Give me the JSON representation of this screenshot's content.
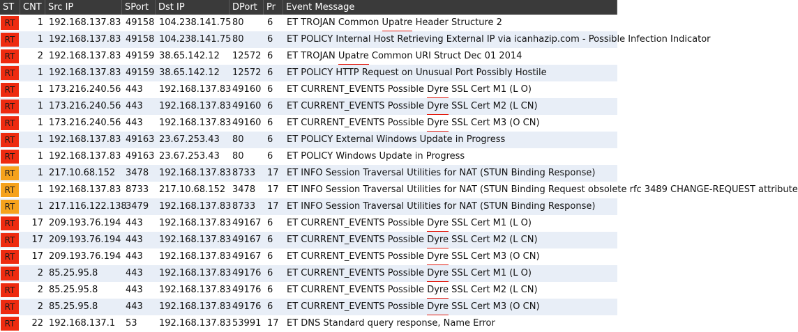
{
  "columns": {
    "st": "ST",
    "cnt": "CNT",
    "src": "Src IP",
    "sport": "SPort",
    "dst": "Dst IP",
    "dport": "DPort",
    "pr": "Pr",
    "msg": "Event Message"
  },
  "severity_colors": {
    "high": "#ee2b10",
    "med": "#f6a21c",
    "underline": "#e31a0e"
  },
  "rows": [
    {
      "st": "RT",
      "sev": "high",
      "cnt": "1",
      "src": "192.168.137.83",
      "sport": "49158",
      "dst": "104.238.141.75",
      "dport": "80",
      "pr": "6",
      "pre": "ET TROJAN Common ",
      "kw": "Upatre",
      "post": " Header Structure 2",
      "mark": true
    },
    {
      "st": "RT",
      "sev": "high",
      "cnt": "1",
      "src": "192.168.137.83",
      "sport": "49158",
      "dst": "104.238.141.75",
      "dport": "80",
      "pr": "6",
      "pre": "ET POLICY Internal Host Retrieving External IP via icanhazip.com - Possible Infection Indicator",
      "kw": "",
      "post": "",
      "mark": false
    },
    {
      "st": "RT",
      "sev": "high",
      "cnt": "2",
      "src": "192.168.137.83",
      "sport": "49159",
      "dst": "38.65.142.12",
      "dport": "12572",
      "pr": "6",
      "pre": "ET TROJAN ",
      "kw": "Upatre",
      "post": " Common URI Struct Dec 01 2014",
      "mark": true
    },
    {
      "st": "RT",
      "sev": "high",
      "cnt": "1",
      "src": "192.168.137.83",
      "sport": "49159",
      "dst": "38.65.142.12",
      "dport": "12572",
      "pr": "6",
      "pre": "ET POLICY HTTP Request on Unusual Port Possibly Hostile",
      "kw": "",
      "post": "",
      "mark": false
    },
    {
      "st": "RT",
      "sev": "high",
      "cnt": "1",
      "src": "173.216.240.56",
      "sport": "443",
      "dst": "192.168.137.83",
      "dport": "49160",
      "pr": "6",
      "pre": "ET CURRENT_EVENTS Possible ",
      "kw": "Dyre",
      "post": " SSL Cert M1 (L O)",
      "mark": true
    },
    {
      "st": "RT",
      "sev": "high",
      "cnt": "1",
      "src": "173.216.240.56",
      "sport": "443",
      "dst": "192.168.137.83",
      "dport": "49160",
      "pr": "6",
      "pre": "ET CURRENT_EVENTS Possible ",
      "kw": "Dyre",
      "post": " SSL Cert M2 (L CN)",
      "mark": true
    },
    {
      "st": "RT",
      "sev": "high",
      "cnt": "1",
      "src": "173.216.240.56",
      "sport": "443",
      "dst": "192.168.137.83",
      "dport": "49160",
      "pr": "6",
      "pre": "ET CURRENT_EVENTS Possible ",
      "kw": "Dyre",
      "post": " SSL Cert M3 (O CN)",
      "mark": true
    },
    {
      "st": "RT",
      "sev": "high",
      "cnt": "1",
      "src": "192.168.137.83",
      "sport": "49163",
      "dst": "23.67.253.43",
      "dport": "80",
      "pr": "6",
      "pre": "ET POLICY External Windows Update in Progress",
      "kw": "",
      "post": "",
      "mark": false
    },
    {
      "st": "RT",
      "sev": "high",
      "cnt": "1",
      "src": "192.168.137.83",
      "sport": "49163",
      "dst": "23.67.253.43",
      "dport": "80",
      "pr": "6",
      "pre": "ET POLICY Windows Update in Progress",
      "kw": "",
      "post": "",
      "mark": false
    },
    {
      "st": "RT",
      "sev": "med",
      "cnt": "1",
      "src": "217.10.68.152",
      "sport": "3478",
      "dst": "192.168.137.83",
      "dport": "8733",
      "pr": "17",
      "pre": "ET INFO Session Traversal Utilities for NAT (STUN Binding Response)",
      "kw": "",
      "post": "",
      "mark": false
    },
    {
      "st": "RT",
      "sev": "med",
      "cnt": "1",
      "src": "192.168.137.83",
      "sport": "8733",
      "dst": "217.10.68.152",
      "dport": "3478",
      "pr": "17",
      "pre": "ET INFO Session Traversal Utilities for NAT (STUN Binding Request obsolete rfc 3489 CHANGE-REQUEST attribute",
      "kw": "",
      "post": "",
      "mark": false
    },
    {
      "st": "RT",
      "sev": "med",
      "cnt": "1",
      "src": "217.116.122.138",
      "sport": "3479",
      "dst": "192.168.137.83",
      "dport": "8733",
      "pr": "17",
      "pre": "ET INFO Session Traversal Utilities for NAT (STUN Binding Response)",
      "kw": "",
      "post": "",
      "mark": false
    },
    {
      "st": "RT",
      "sev": "high",
      "cnt": "17",
      "src": "209.193.76.194",
      "sport": "443",
      "dst": "192.168.137.83",
      "dport": "49167",
      "pr": "6",
      "pre": "ET CURRENT_EVENTS Possible ",
      "kw": "Dyre",
      "post": " SSL Cert M1 (L O)",
      "mark": true
    },
    {
      "st": "RT",
      "sev": "high",
      "cnt": "17",
      "src": "209.193.76.194",
      "sport": "443",
      "dst": "192.168.137.83",
      "dport": "49167",
      "pr": "6",
      "pre": "ET CURRENT_EVENTS Possible ",
      "kw": "Dyre",
      "post": " SSL Cert M2 (L CN)",
      "mark": true
    },
    {
      "st": "RT",
      "sev": "high",
      "cnt": "17",
      "src": "209.193.76.194",
      "sport": "443",
      "dst": "192.168.137.83",
      "dport": "49167",
      "pr": "6",
      "pre": "ET CURRENT_EVENTS Possible ",
      "kw": "Dyre",
      "post": " SSL Cert M3 (O CN)",
      "mark": true
    },
    {
      "st": "RT",
      "sev": "high",
      "cnt": "2",
      "src": "85.25.95.8",
      "sport": "443",
      "dst": "192.168.137.83",
      "dport": "49176",
      "pr": "6",
      "pre": "ET CURRENT_EVENTS Possible ",
      "kw": "Dyre",
      "post": " SSL Cert M1 (L O)",
      "mark": true
    },
    {
      "st": "RT",
      "sev": "high",
      "cnt": "2",
      "src": "85.25.95.8",
      "sport": "443",
      "dst": "192.168.137.83",
      "dport": "49176",
      "pr": "6",
      "pre": "ET CURRENT_EVENTS Possible ",
      "kw": "Dyre",
      "post": " SSL Cert M2 (L CN)",
      "mark": true
    },
    {
      "st": "RT",
      "sev": "high",
      "cnt": "2",
      "src": "85.25.95.8",
      "sport": "443",
      "dst": "192.168.137.83",
      "dport": "49176",
      "pr": "6",
      "pre": "ET CURRENT_EVENTS Possible ",
      "kw": "Dyre",
      "post": " SSL Cert M3 (O CN)",
      "mark": true
    },
    {
      "st": "RT",
      "sev": "high",
      "cnt": "22",
      "src": "192.168.137.1",
      "sport": "53",
      "dst": "192.168.137.83",
      "dport": "53991",
      "pr": "17",
      "pre": "ET DNS Standard query response, Name Error",
      "kw": "",
      "post": "",
      "mark": false
    }
  ]
}
